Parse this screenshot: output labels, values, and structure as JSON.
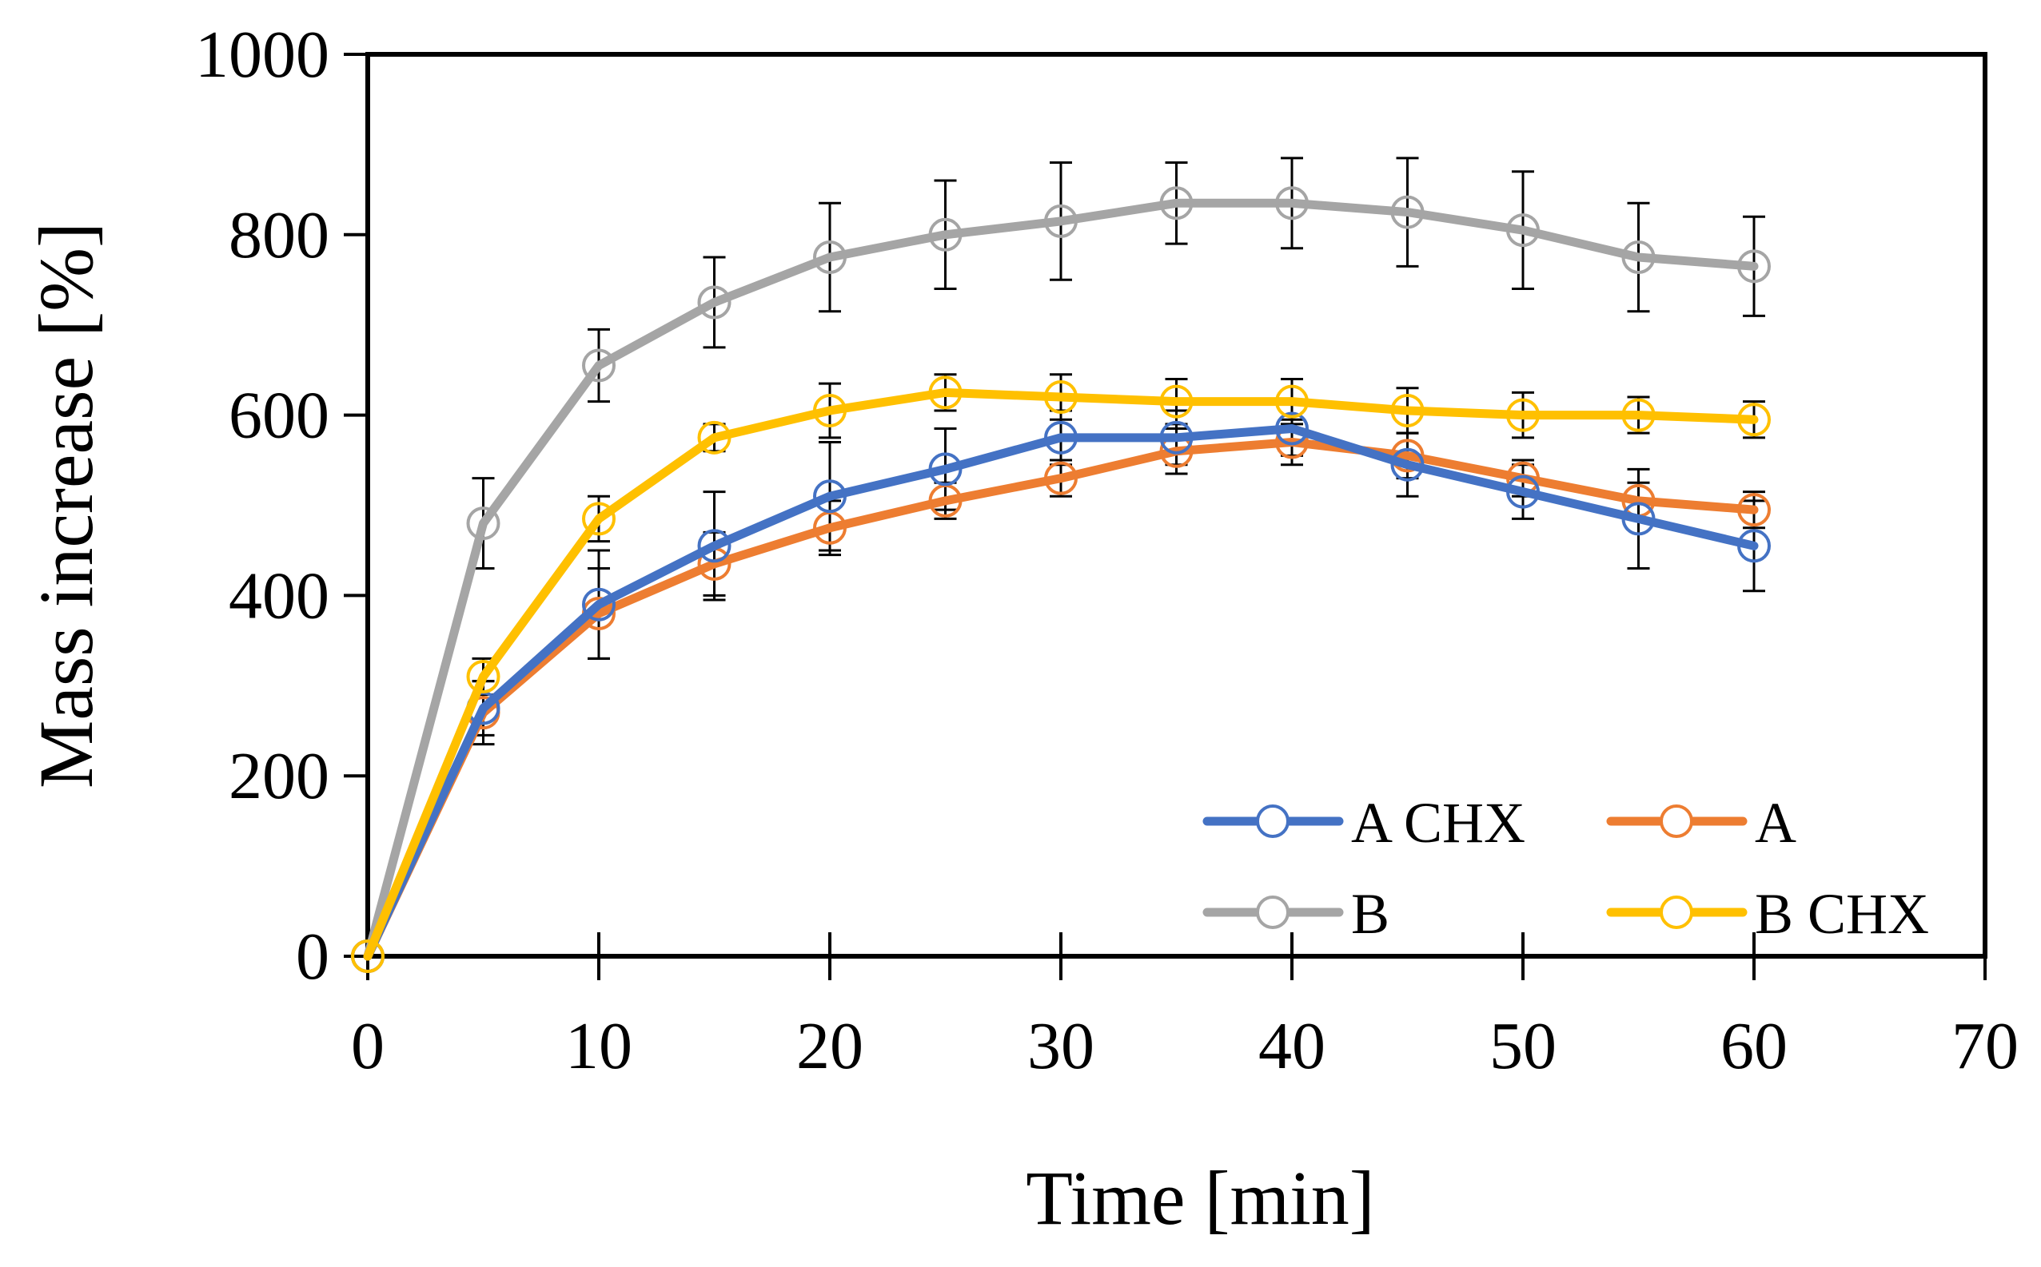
{
  "chart_data": {
    "type": "line",
    "title": "",
    "xlabel": "Time [min]",
    "ylabel": "Mass increase [%]",
    "xlim": [
      0,
      70
    ],
    "ylim": [
      0,
      1000
    ],
    "xticks": [
      0,
      10,
      20,
      30,
      40,
      50,
      60,
      70
    ],
    "yticks": [
      0,
      200,
      400,
      600,
      800,
      1000
    ],
    "grid": false,
    "legend_position": "bottom-right",
    "x": [
      0,
      5,
      10,
      15,
      20,
      25,
      30,
      35,
      40,
      45,
      50,
      55,
      60
    ],
    "series": [
      {
        "name": "A CHX",
        "color": "#4472C4",
        "marker": "open-circle",
        "values": [
          0,
          275,
          390,
          455,
          510,
          540,
          575,
          575,
          585,
          545,
          515,
          485,
          455
        ],
        "error": [
          0,
          30,
          60,
          60,
          60,
          45,
          30,
          30,
          30,
          35,
          30,
          55,
          50
        ]
      },
      {
        "name": "A",
        "color": "#ED7D31",
        "marker": "open-circle",
        "values": [
          0,
          270,
          380,
          435,
          475,
          505,
          530,
          560,
          570,
          555,
          530,
          505,
          495
        ],
        "error": [
          0,
          35,
          50,
          35,
          30,
          20,
          20,
          25,
          25,
          25,
          20,
          20,
          20
        ]
      },
      {
        "name": "B",
        "color": "#A5A5A5",
        "marker": "open-circle",
        "values": [
          0,
          480,
          655,
          725,
          775,
          800,
          815,
          835,
          835,
          825,
          805,
          775,
          765
        ],
        "error": [
          0,
          50,
          40,
          50,
          60,
          60,
          65,
          45,
          50,
          60,
          65,
          60,
          55
        ]
      },
      {
        "name": "B CHX",
        "color": "#FFC000",
        "marker": "open-circle",
        "values": [
          0,
          310,
          485,
          575,
          605,
          625,
          620,
          615,
          615,
          605,
          600,
          600,
          595
        ],
        "error": [
          0,
          20,
          25,
          15,
          30,
          20,
          25,
          25,
          25,
          25,
          25,
          20,
          20
        ]
      }
    ]
  }
}
